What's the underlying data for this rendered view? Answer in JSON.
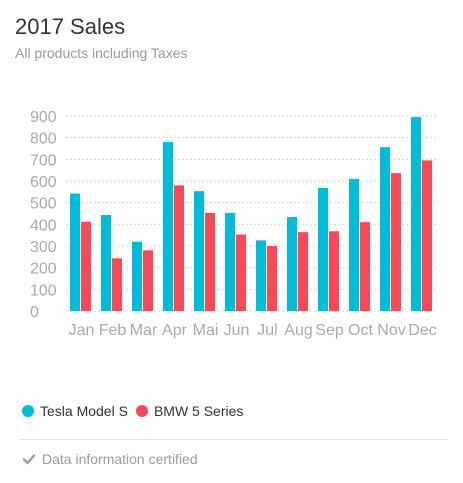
{
  "header": {
    "title": "2017 Sales",
    "subtitle": "All products including Taxes"
  },
  "legend": {
    "items": [
      {
        "label": "Tesla Model S",
        "color": "#00bcd9"
      },
      {
        "label": "BMW 5 Series",
        "color": "#f64a59"
      }
    ]
  },
  "footer": {
    "icon": "check-icon",
    "text": "Data information certified"
  },
  "chart_data": {
    "type": "bar",
    "categories": [
      "Jan",
      "Feb",
      "Mar",
      "Apr",
      "Mai",
      "Jun",
      "Jul",
      "Aug",
      "Sep",
      "Oct",
      "Nov",
      "Dec"
    ],
    "series": [
      {
        "name": "Tesla Model S",
        "color": "#00bcd9",
        "values": [
          542,
          443,
          320,
          780,
          553,
          453,
          326,
          434,
          568,
          610,
          756,
          895
        ]
      },
      {
        "name": "BMW 5 Series",
        "color": "#f64a59",
        "values": [
          412,
          243,
          280,
          580,
          453,
          353,
          300,
          364,
          368,
          410,
          636,
          695
        ]
      }
    ],
    "yticks": [
      0,
      100,
      200,
      300,
      400,
      500,
      600,
      700,
      800,
      900
    ],
    "ylim": [
      0,
      900
    ],
    "grid": true,
    "legend_position": "bottom-left"
  }
}
